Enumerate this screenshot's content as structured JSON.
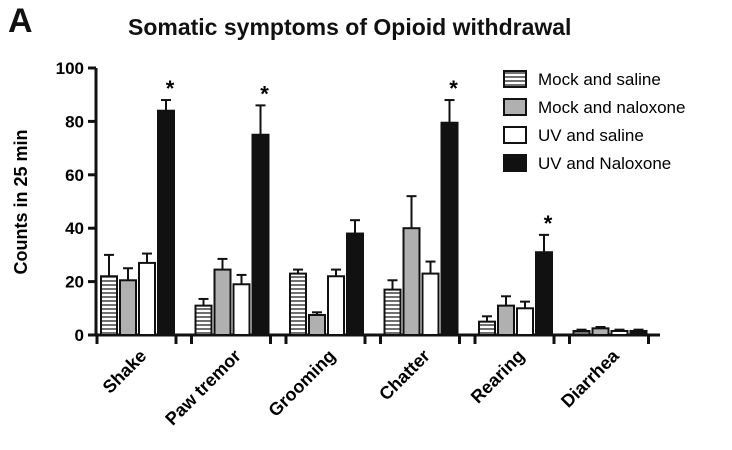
{
  "panel_label": "A",
  "chart_data": {
    "type": "bar",
    "title": "Somatic symptoms of Opioid withdrawal",
    "xlabel": "",
    "ylabel": "Counts in 25 min",
    "ylim": [
      0,
      100
    ],
    "yticks": [
      0,
      20,
      40,
      60,
      80,
      100
    ],
    "grid": false,
    "legend_position": "top-right",
    "categories": [
      "Shake",
      "Paw tremor",
      "Grooming",
      "Chatter",
      "Rearing",
      "Diarrhea"
    ],
    "series": [
      {
        "name": "Mock and saline",
        "fill": "hatched",
        "color": "#ffffff",
        "values": [
          22,
          11,
          23,
          17,
          5,
          1.5
        ],
        "errors": [
          8,
          2.5,
          1.5,
          3.5,
          2,
          0.5
        ]
      },
      {
        "name": "Mock and naloxone",
        "fill": "solid",
        "color": "#b0b0b0",
        "values": [
          20.5,
          24.5,
          7.5,
          40,
          11,
          2.5
        ],
        "errors": [
          4.5,
          4,
          1,
          12,
          3.5,
          0.5
        ]
      },
      {
        "name": "UV and saline",
        "fill": "solid",
        "color": "#ffffff",
        "values": [
          27,
          19,
          22,
          23,
          10,
          1.5
        ],
        "errors": [
          3.5,
          3.5,
          2.5,
          4.5,
          2.5,
          0.5
        ]
      },
      {
        "name": "UV and Naloxone",
        "fill": "solid",
        "color": "#111111",
        "values": [
          84,
          75,
          38,
          79.5,
          31,
          1.5
        ],
        "errors": [
          4,
          11,
          5,
          8.5,
          6.5,
          0.5
        ]
      }
    ],
    "annotations": [
      {
        "text": "*",
        "category": "Shake",
        "series": "UV and Naloxone"
      },
      {
        "text": "*",
        "category": "Paw tremor",
        "series": "UV and Naloxone"
      },
      {
        "text": "*",
        "category": "Chatter",
        "series": "UV and Naloxone"
      },
      {
        "text": "*",
        "category": "Rearing",
        "series": "UV and Naloxone"
      }
    ]
  }
}
